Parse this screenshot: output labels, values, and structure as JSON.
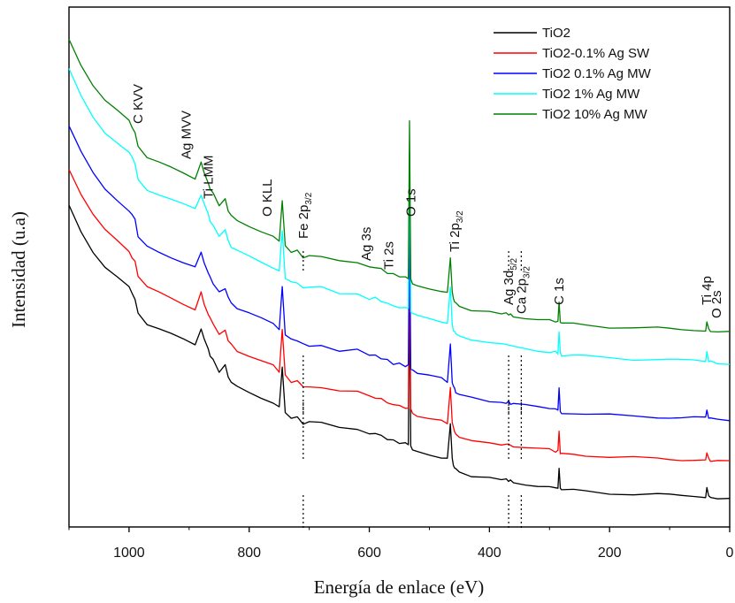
{
  "chart_data": {
    "type": "line",
    "xlabel": "Energía de enlace (eV)",
    "ylabel": "Intensidad (u.a)",
    "xlim": [
      1100,
      0
    ],
    "ylim": [
      0,
      100
    ],
    "x_reversed": true,
    "x_ticks": [
      1000,
      800,
      600,
      400,
      200,
      0
    ],
    "y_ticks_shown": false,
    "legend_position": "top-right",
    "series": [
      {
        "name": "TiO2",
        "color": "#000000",
        "offset": 0,
        "x": [
          1100,
          1080,
          1060,
          1040,
          1020,
          1000,
          995,
          990,
          985,
          970,
          950,
          930,
          910,
          890,
          880,
          875,
          868,
          865,
          860,
          850,
          840,
          835,
          830,
          820,
          800,
          780,
          760,
          750,
          745,
          740,
          730,
          720,
          710,
          700,
          680,
          650,
          620,
          600,
          590,
          580,
          570,
          560,
          550,
          540,
          535,
          533,
          531,
          528,
          520,
          500,
          480,
          470,
          465,
          462,
          460,
          458,
          456,
          450,
          430,
          400,
          380,
          372,
          368,
          365,
          360,
          340,
          320,
          300,
          290,
          286,
          284,
          282,
          280,
          260,
          240,
          200,
          160,
          120,
          100,
          80,
          60,
          40,
          38,
          35,
          32,
          20,
          0
        ],
        "y": [
          62,
          57,
          53,
          50,
          48,
          46,
          45,
          44,
          41,
          39,
          38,
          37,
          36,
          35,
          38,
          36,
          34,
          33,
          32,
          30,
          31,
          29,
          28,
          27,
          26,
          25,
          24,
          23,
          31,
          22,
          21,
          21,
          20,
          20,
          20,
          19,
          19,
          18,
          18,
          17.5,
          17,
          16.5,
          16.3,
          16,
          16,
          46,
          15.5,
          15,
          14.5,
          14,
          13.5,
          13,
          20,
          13,
          12,
          11.5,
          11,
          10.5,
          9.8,
          9.3,
          9,
          9,
          9,
          8.8,
          8.6,
          8.3,
          8,
          7.8,
          7.6,
          7.5,
          11.5,
          7.3,
          7,
          7,
          6.8,
          6.5,
          6.3,
          6.2,
          6.1,
          6,
          6,
          5.9,
          7.5,
          6,
          5.8,
          5.6,
          5.5
        ]
      },
      {
        "name": "TiO2-0.1% Ag SW",
        "color": "#ff0000",
        "offset": 7
      },
      {
        "name": "TiO2 0.1% Ag MW",
        "color": "#0000ff",
        "offset": 15
      },
      {
        "name": "TiO2 1% Ag MW",
        "color": "#00ffff",
        "offset": 26
      },
      {
        "name": "TiO2 10% Ag MW",
        "color": "#008000",
        "offset": 32
      }
    ],
    "peak_labels": [
      {
        "text": "C KVV",
        "sub": "",
        "x": 985
      },
      {
        "text": "Ag MVV",
        "sub": "",
        "x": 905
      },
      {
        "text": "Ti LMM",
        "sub": "",
        "x": 868
      },
      {
        "text": "O KLL",
        "sub": "",
        "x": 770
      },
      {
        "text": "Fe 2p",
        "sub": "3/2",
        "x": 710
      },
      {
        "text": "Ag 3s",
        "sub": "",
        "x": 605
      },
      {
        "text": "Ti 2s",
        "sub": "",
        "x": 568
      },
      {
        "text": "O 1s",
        "sub": "",
        "x": 531
      },
      {
        "text": "Ti 2p",
        "sub": "3/2",
        "x": 458
      },
      {
        "text": "Ag 3d",
        "sub": "5/2",
        "x": 368
      },
      {
        "text": "Ca 2p",
        "sub": "3/2",
        "x": 347
      },
      {
        "text": "C 1s",
        "sub": "",
        "x": 284
      },
      {
        "text": "Ti 4p",
        "sub": "",
        "x": 38
      },
      {
        "text": "O 2s",
        "sub": "",
        "x": 22
      }
    ],
    "reference_lines_x": [
      710,
      368,
      347
    ]
  }
}
